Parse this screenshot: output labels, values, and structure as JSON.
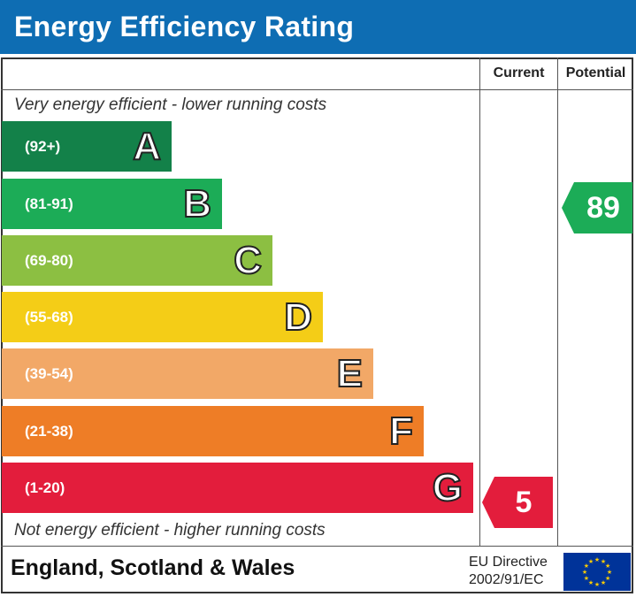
{
  "header": {
    "title": "Energy Efficiency Rating"
  },
  "columns": {
    "current": "Current",
    "potential": "Potential"
  },
  "notes": {
    "top": "Very energy efficient - lower running costs",
    "bottom": "Not energy efficient - higher running costs"
  },
  "chart_data": {
    "type": "bar",
    "bands": [
      {
        "letter": "A",
        "range": "(92+)",
        "color": "#138149"
      },
      {
        "letter": "B",
        "range": "(81-91)",
        "color": "#1cac57"
      },
      {
        "letter": "C",
        "range": "(69-80)",
        "color": "#8cbf42"
      },
      {
        "letter": "D",
        "range": "(55-68)",
        "color": "#f4cd17"
      },
      {
        "letter": "E",
        "range": "(39-54)",
        "color": "#f2a867"
      },
      {
        "letter": "F",
        "range": "(21-38)",
        "color": "#ee7d26"
      },
      {
        "letter": "G",
        "range": "(1-20)",
        "color": "#e31d3c"
      }
    ],
    "current": {
      "value": 5,
      "band": "G",
      "color": "#e31d3c"
    },
    "potential": {
      "value": 89,
      "band": "B",
      "color": "#1cac57"
    }
  },
  "footer": {
    "region": "England, Scotland & Wales",
    "directive_line1": "EU Directive",
    "directive_line2": "2002/91/EC"
  },
  "flag": {
    "name": "eu-flag-icon",
    "background": "#003399",
    "stars": "#ffcc00"
  }
}
